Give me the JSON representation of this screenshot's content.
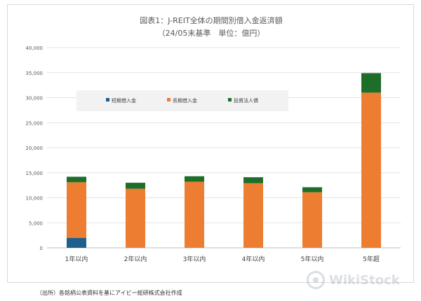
{
  "chart_data": {
    "type": "bar",
    "stacked": true,
    "title": "図表1：J-REIT全体の期間別借入金返済額",
    "subtitle": "（24/05末基準　単位：億円）",
    "categories": [
      "1年以内",
      "2年以内",
      "3年以内",
      "4年以内",
      "5年以内",
      "5年超"
    ],
    "series": [
      {
        "name": "短期借入金",
        "color": "#1f5f8b",
        "values": [
          2000,
          0,
          0,
          0,
          0,
          0
        ]
      },
      {
        "name": "長期借入金",
        "color": "#ed7d31",
        "values": [
          11100,
          11800,
          13200,
          12900,
          11100,
          31000
        ]
      },
      {
        "name": "投資法人債",
        "color": "#1e6e2a",
        "values": [
          1100,
          1200,
          1100,
          1200,
          1000,
          3900
        ]
      }
    ],
    "ylim": [
      0,
      40000
    ],
    "yticks": [
      "0",
      "5,000",
      "10,000",
      "15,000",
      "20,000",
      "25,000",
      "30,000",
      "35,000",
      "40,000"
    ],
    "grid": true,
    "legend": "top-center"
  },
  "source_note": "（出所）各銘柄公表資料を基にアイビー総研株式会社作成",
  "watermark": "WikiStock"
}
